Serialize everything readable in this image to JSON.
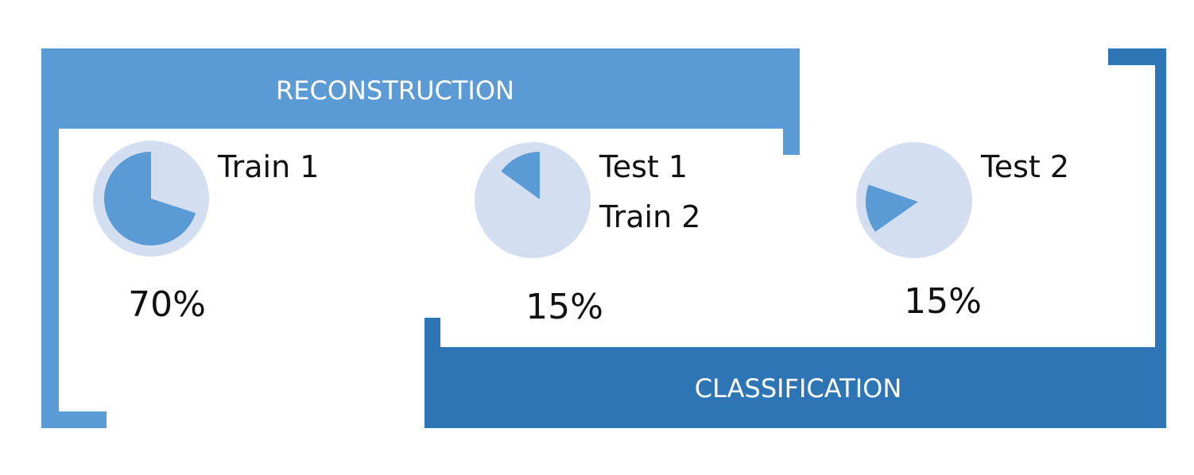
{
  "reconstruction": {
    "title": "RECONSTRUCTION"
  },
  "classification": {
    "title": "CLASSIFICATION"
  },
  "splits": [
    {
      "labels": [
        "Train 1"
      ],
      "percent_label": "70%",
      "fraction": 0.7
    },
    {
      "labels": [
        "Test 1",
        "Train 2"
      ],
      "percent_label": "15%",
      "fraction": 0.15
    },
    {
      "labels": [
        "Test 2"
      ],
      "percent_label": "15%",
      "fraction": 0.15
    }
  ],
  "colors": {
    "reconstruction": "#5b9bd5",
    "classification": "#2e75b6",
    "pie_background": "#d3dff1",
    "pie_slice": "#5b9bd5",
    "banner_text": "#ffffff"
  }
}
